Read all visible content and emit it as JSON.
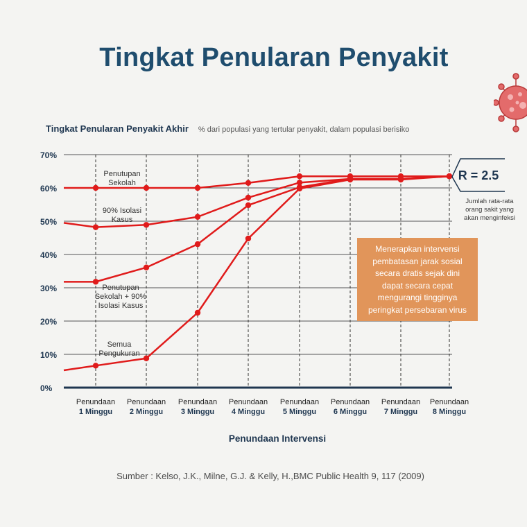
{
  "title": "Tingkat Penularan Penyakit",
  "chart_heading": "Tingkat Penularan Penyakit Akhir",
  "chart_subheading": "% dari populasi yang tertular penyakit, dalam populasi berisiko",
  "r_label": "R = 2.5",
  "r_note": "Jumlah rata-rata orang sakit yang akan menginfeksi",
  "callout": "Menerapkan intervensi pembatasan jarak sosial secara dratis sejak dini dapat secara cepat mengurangi tingginya peringkat persebaran virus",
  "source": "Sumber : Kelso, J.K., Milne, G.J. & Kelly, H.,BMC Public Health 9, 117 (2009)",
  "colors": {
    "series": "#e01b1b",
    "title": "#1f4d6e",
    "axis": "#1e3650",
    "callout": "#e1955a"
  },
  "icons": [
    "virus-icon"
  ],
  "chart_data": {
    "type": "line",
    "xlabel": "Penundaan Intervensi",
    "ylabel": "",
    "ylim": [
      0,
      70
    ],
    "grid": true,
    "y_ticks": [
      {
        "value": 0,
        "label": "0%"
      },
      {
        "value": 10,
        "label": "10%"
      },
      {
        "value": 20,
        "label": "20%"
      },
      {
        "value": 30,
        "label": "30%"
      },
      {
        "value": 40,
        "label": "40%"
      },
      {
        "value": 50,
        "label": "50%"
      },
      {
        "value": 60,
        "label": "60%"
      },
      {
        "value": 70,
        "label": "70%"
      }
    ],
    "categories": [
      {
        "line1": "Penundaan",
        "line2": "1 Minggu"
      },
      {
        "line1": "Penundaan",
        "line2": "2 Minggu"
      },
      {
        "line1": "Penundaan",
        "line2": "3 Minggu"
      },
      {
        "line1": "Penundaan",
        "line2": "4 Minggu"
      },
      {
        "line1": "Penundaan",
        "line2": "5 Minggu"
      },
      {
        "line1": "Penundaan",
        "line2": "6 Minggu"
      },
      {
        "line1": "Penundaan",
        "line2": "7 Minggu"
      },
      {
        "line1": "Penundaan",
        "line2": "8 Minggu"
      }
    ],
    "series": [
      {
        "name": "Penutupan Sekolah",
        "label_lines": [
          "Penutupan",
          "Sekolah"
        ],
        "start_value": 60,
        "values": [
          60,
          60,
          60,
          61.5,
          63.5,
          63.5,
          63.5,
          63.5
        ]
      },
      {
        "name": "90% Isolasi Kasus",
        "label_lines": [
          "90% Isolasi",
          "Kasus"
        ],
        "start_value": 49.5,
        "values": [
          48.2,
          48.9,
          51.3,
          57.1,
          61.6,
          62.7,
          62.7,
          63.5
        ]
      },
      {
        "name": "Penutupan Sekolah + 90% Isolasi Kasus",
        "label_lines": [
          "Penutupan",
          "Sekolah + 90%",
          "Isolasi Kasus"
        ],
        "start_value": 31.8,
        "values": [
          31.8,
          36.1,
          43.1,
          54.8,
          60.2,
          62.7,
          62.7,
          63.5
        ]
      },
      {
        "name": "Semua Pengukuran",
        "label_lines": [
          "Semua",
          "Pengukuran"
        ],
        "start_value": 5.2,
        "values": [
          6.6,
          8.8,
          22.5,
          44.8,
          59.8,
          62.5,
          62.5,
          63.5
        ]
      }
    ]
  }
}
